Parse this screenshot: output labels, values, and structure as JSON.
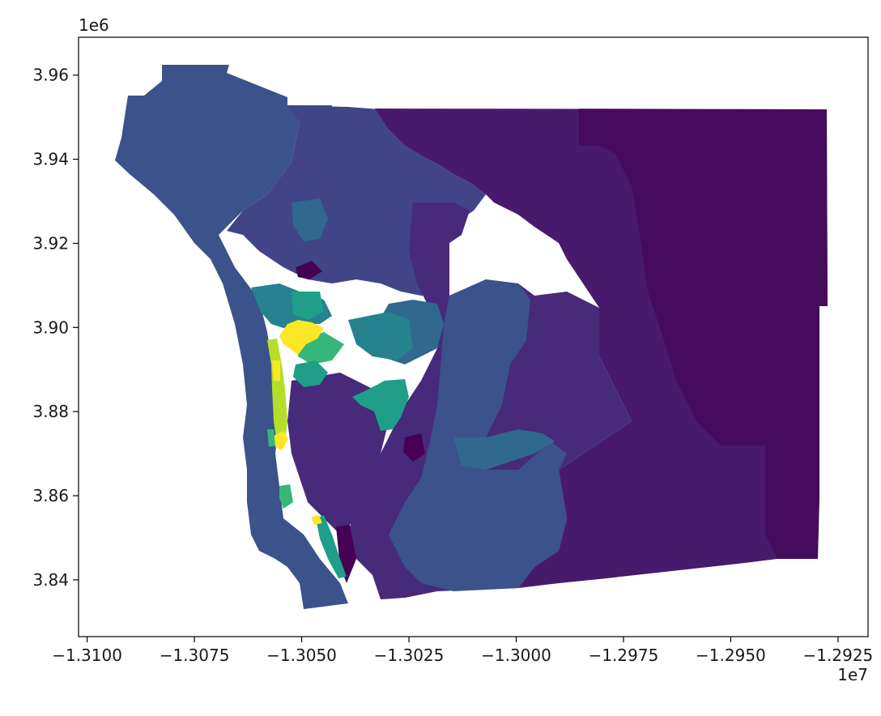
{
  "chart_data": {
    "type": "choropleth-map",
    "title": "",
    "xlabel": "",
    "ylabel": "",
    "colormap": "viridis",
    "x_offset_label": "1e7",
    "y_offset_label": "1e6",
    "xlim": [
      -1.3102,
      -1.2918
    ],
    "ylim": [
      3.8265,
      3.969
    ],
    "x_ticks": [
      -1.31,
      -1.3075,
      -1.305,
      -1.3025,
      -1.3,
      -1.2975,
      -1.295,
      -1.2925
    ],
    "x_tick_labels": [
      "−1.3100",
      "−1.3075",
      "−1.3050",
      "−1.3025",
      "−1.3000",
      "−1.2975",
      "−1.2950",
      "−1.2925"
    ],
    "y_ticks": [
      3.84,
      3.86,
      3.88,
      3.9,
      3.92,
      3.94,
      3.96
    ],
    "y_tick_labels": [
      "3.84",
      "3.86",
      "3.88",
      "3.90",
      "3.92",
      "3.94",
      "3.96"
    ],
    "colors": {
      "darkest": "#440154",
      "dark_purple": "#481a6c",
      "indigo": "#472a7a",
      "slate_blue": "#414487",
      "blue": "#3b528b",
      "steel": "#31688e",
      "teal": "#26828e",
      "green_teal": "#1f9e89",
      "green": "#35b779",
      "lime": "#6ece58",
      "yellow_green": "#b5de2b",
      "yellow": "#fde725"
    }
  }
}
